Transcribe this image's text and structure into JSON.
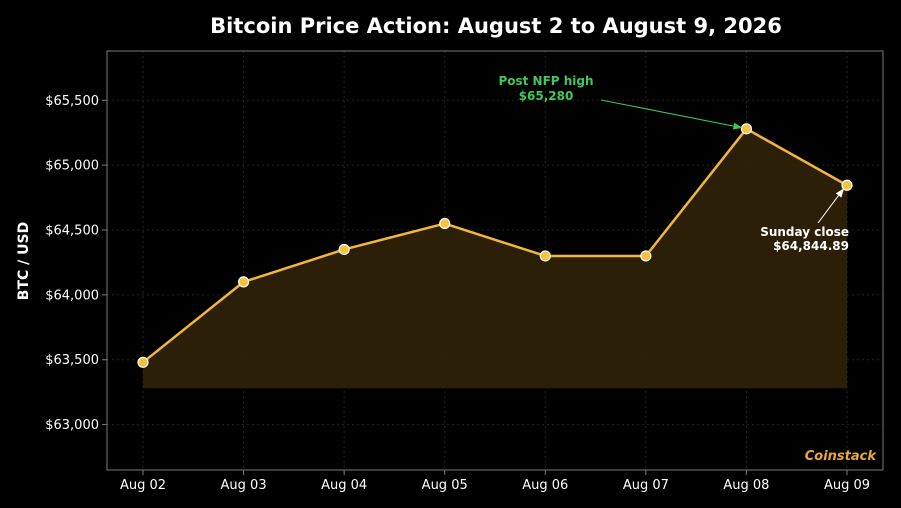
{
  "chart_data": {
    "type": "area",
    "title": "Bitcoin Price Action: August 2 to August 9, 2026",
    "xlabel": "",
    "ylabel": "BTC / USD",
    "categories": [
      "Aug 02",
      "Aug 03",
      "Aug 04",
      "Aug 05",
      "Aug 06",
      "Aug 07",
      "Aug 08",
      "Aug 09"
    ],
    "values": [
      63480,
      64100,
      64350,
      64550,
      64300,
      64300,
      65280,
      64844.89
    ],
    "area_baseline": 63280,
    "ylim": [
      62650,
      65880
    ],
    "yticks": [
      63000,
      63500,
      64000,
      64500,
      65000,
      65500
    ],
    "ytick_labels": [
      "$63,000",
      "$63,500",
      "$64,000",
      "$64,500",
      "$65,000",
      "$65,500"
    ],
    "grid": true,
    "annotations": [
      {
        "line1": "Post NFP high",
        "line2": "$65,280",
        "target_index": 6,
        "color": "#3ec95a"
      },
      {
        "line1": "Sunday close",
        "line2": "$64,844.89",
        "target_index": 7,
        "color": "#ffffff"
      }
    ],
    "watermark": "Coinstack",
    "colors": {
      "line": "#f2b63a",
      "fill": "#2e2108",
      "marker_fill": "#f5c23d",
      "marker_edge": "#ffffff",
      "axes_edge": "#7a7a7a",
      "grid": "#262626",
      "watermark": "#e6a83a"
    }
  }
}
